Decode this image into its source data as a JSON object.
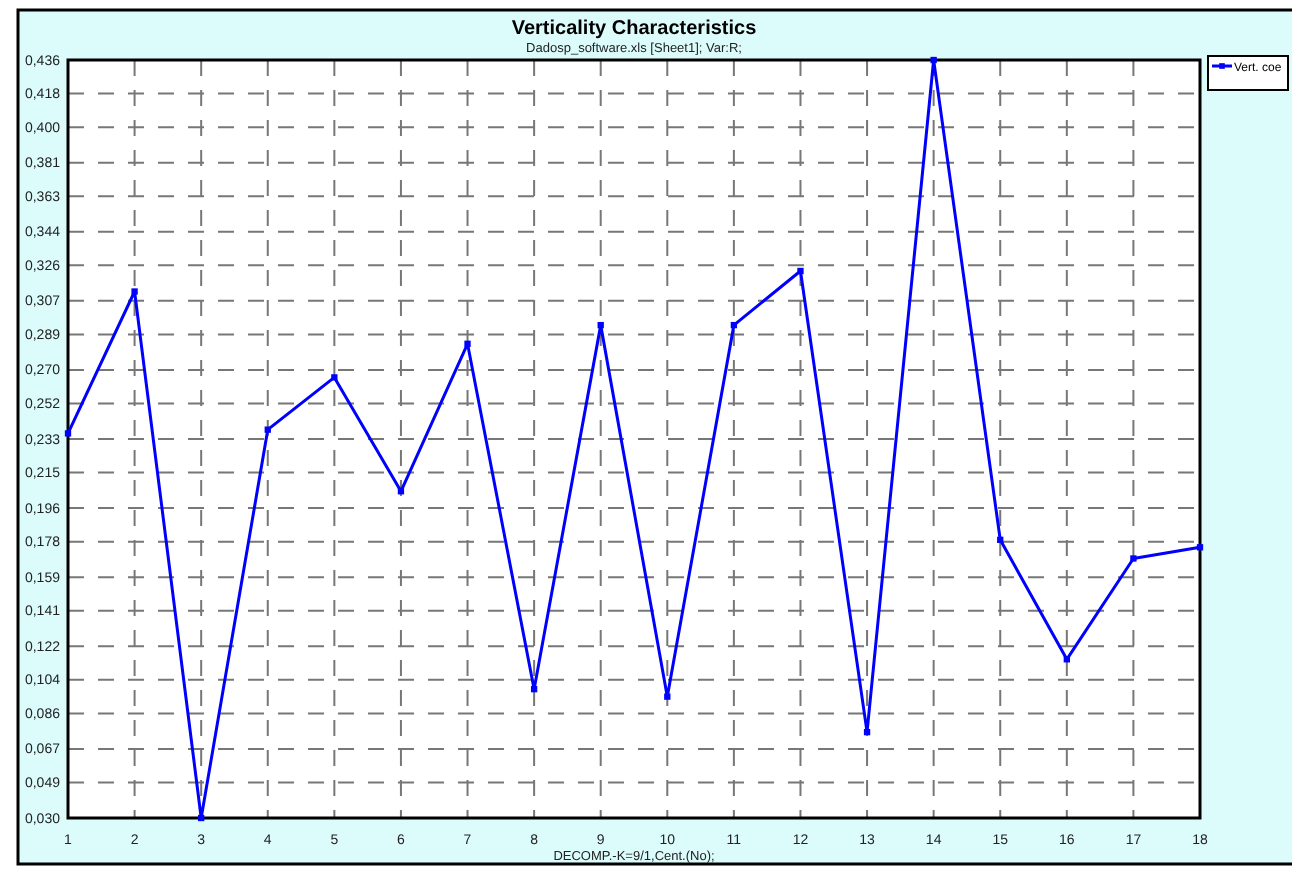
{
  "chart_data": {
    "type": "line",
    "title": "Verticality Characteristics",
    "subtitle": "Dadosp_software.xls [Sheet1];    Var:R;",
    "xlabel": "DECOMP.-K=9/1,Cent.(No);",
    "x": [
      1,
      2,
      3,
      4,
      5,
      6,
      7,
      8,
      9,
      10,
      11,
      12,
      13,
      14,
      15,
      16,
      17,
      18
    ],
    "series": [
      {
        "name": "Vert. coe",
        "color": "#0000ff",
        "values": [
          0.236,
          0.312,
          0.03,
          0.238,
          0.266,
          0.205,
          0.284,
          0.099,
          0.294,
          0.095,
          0.294,
          0.323,
          0.076,
          0.436,
          0.179,
          0.115,
          0.169,
          0.175
        ]
      }
    ],
    "xlim": [
      1,
      18
    ],
    "xticks": [
      1,
      2,
      3,
      4,
      5,
      6,
      7,
      8,
      9,
      10,
      11,
      12,
      13,
      14,
      15,
      16,
      17,
      18
    ],
    "ylim": [
      0.03,
      0.436
    ],
    "yticks": [
      {
        "value": 0.03,
        "label": "0,030"
      },
      {
        "value": 0.049,
        "label": "0,049"
      },
      {
        "value": 0.067,
        "label": "0,067"
      },
      {
        "value": 0.086,
        "label": "0,086"
      },
      {
        "value": 0.104,
        "label": "0,104"
      },
      {
        "value": 0.122,
        "label": "0,122"
      },
      {
        "value": 0.141,
        "label": "0,141"
      },
      {
        "value": 0.159,
        "label": "0,159"
      },
      {
        "value": 0.178,
        "label": "0,178"
      },
      {
        "value": 0.196,
        "label": "0,196"
      },
      {
        "value": 0.215,
        "label": "0,215"
      },
      {
        "value": 0.233,
        "label": "0,233"
      },
      {
        "value": 0.252,
        "label": "0,252"
      },
      {
        "value": 0.27,
        "label": "0,270"
      },
      {
        "value": 0.289,
        "label": "0,289"
      },
      {
        "value": 0.307,
        "label": "0,307"
      },
      {
        "value": 0.326,
        "label": "0,326"
      },
      {
        "value": 0.344,
        "label": "0,344"
      },
      {
        "value": 0.363,
        "label": "0,363"
      },
      {
        "value": 0.381,
        "label": "0,381"
      },
      {
        "value": 0.4,
        "label": "0,400"
      },
      {
        "value": 0.418,
        "label": "0,418"
      },
      {
        "value": 0.436,
        "label": "0,436"
      }
    ],
    "grid": true,
    "legend": "top right",
    "marker": "square",
    "line_style": "solid"
  }
}
